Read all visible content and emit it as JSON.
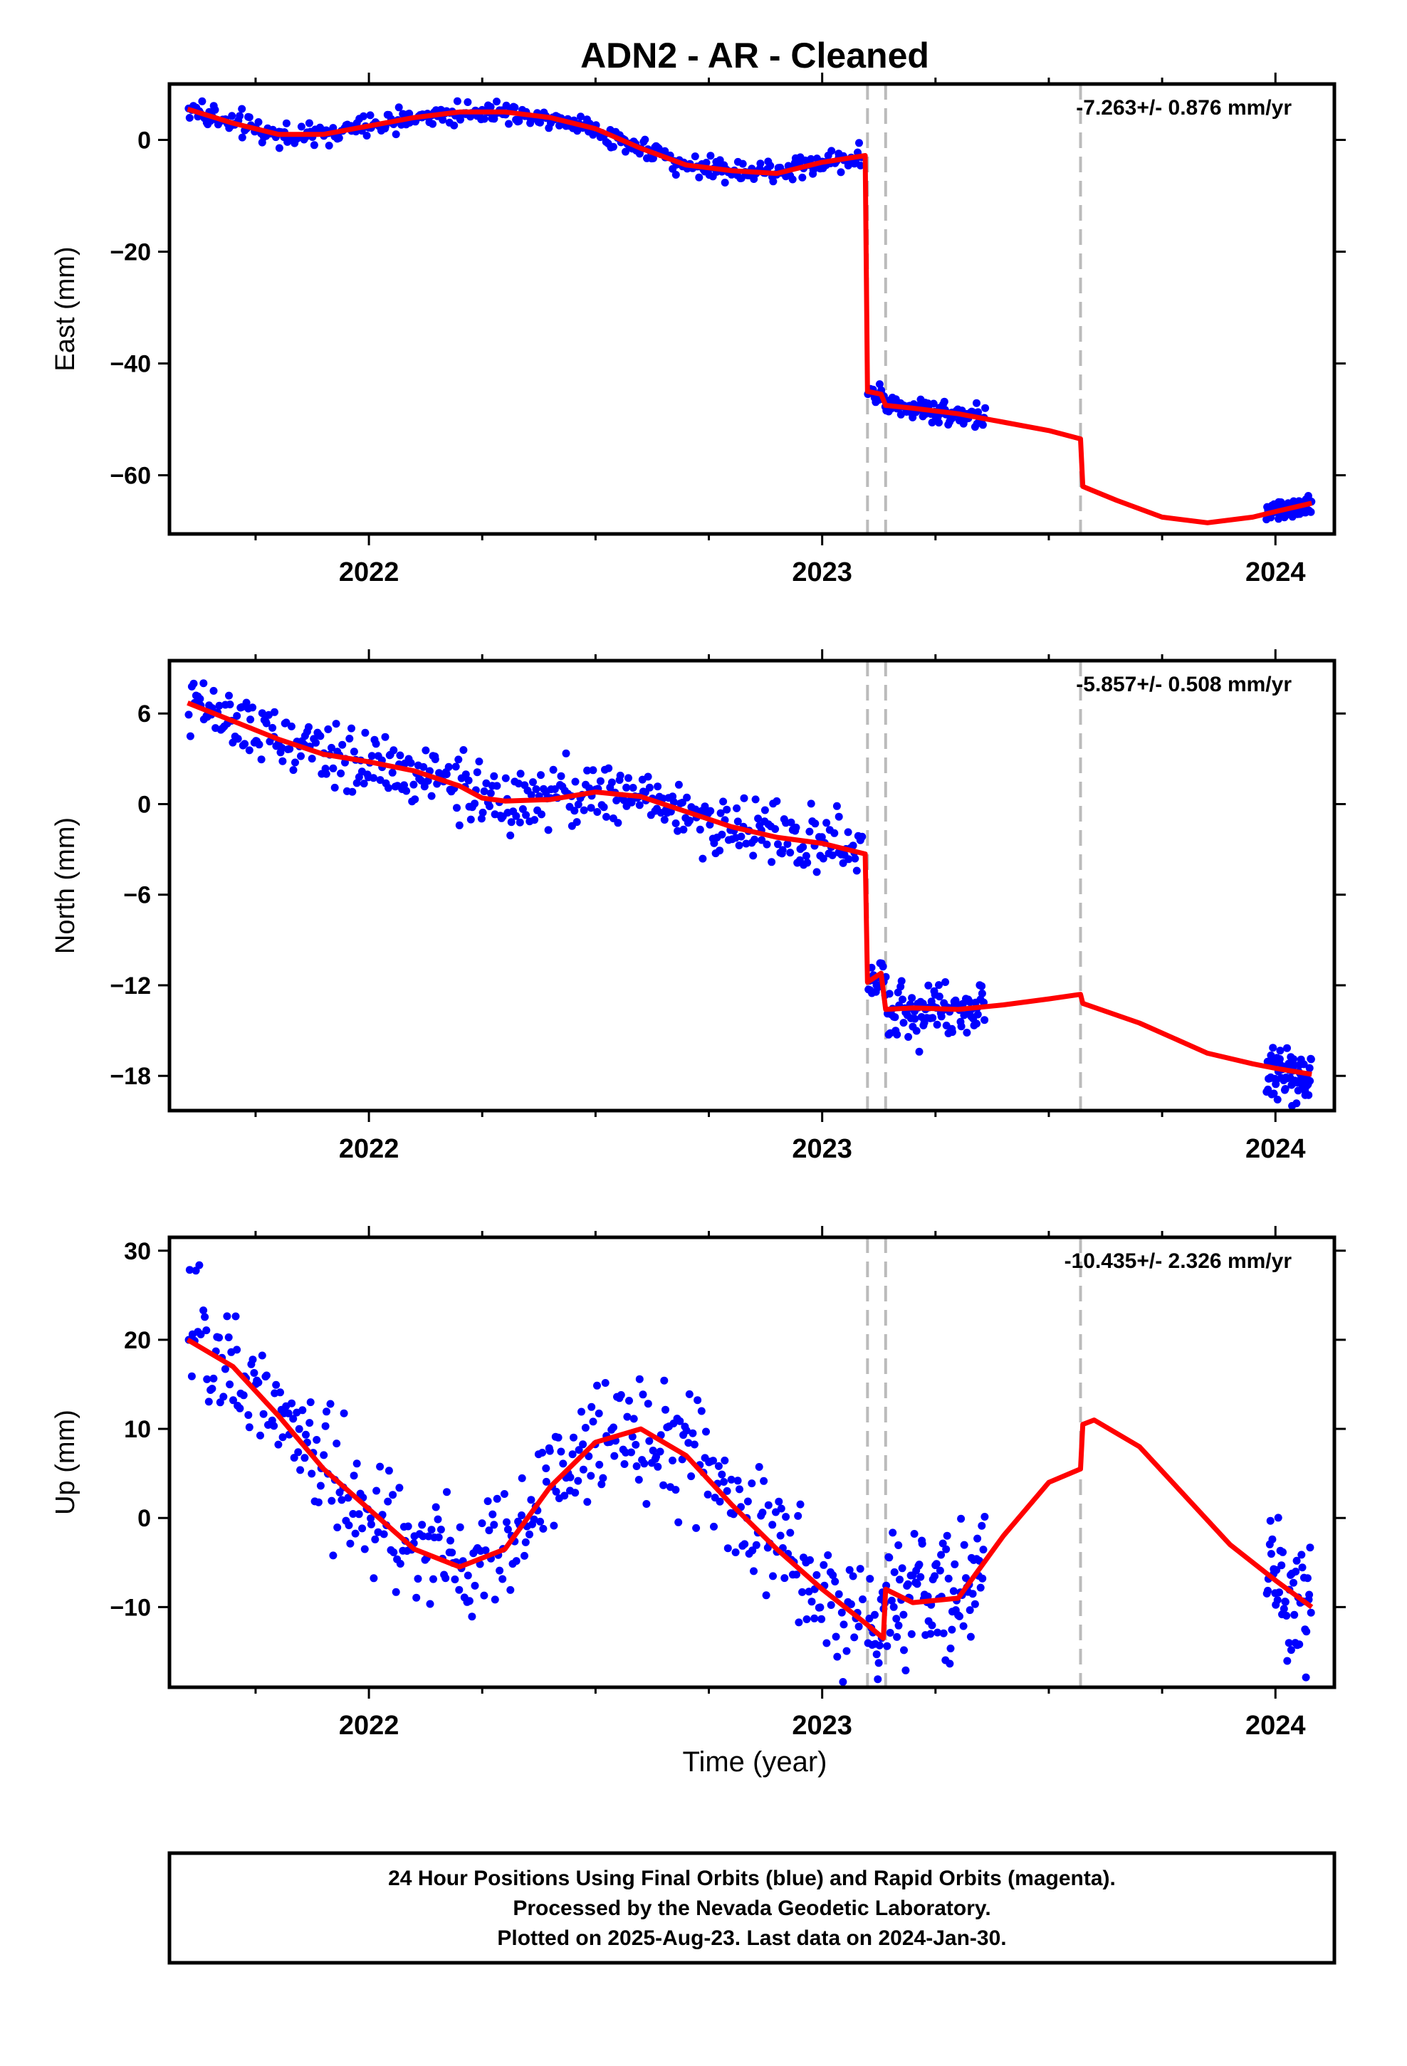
{
  "title": "ADN2  - AR - Cleaned",
  "xlabel": "Time (year)",
  "colors": {
    "points": "#0000ff",
    "model": "#ff0000",
    "break_lines": "#bbbbbb",
    "frame": "#000000"
  },
  "footer": {
    "line1": "24 Hour Positions Using Final Orbits (blue) and Rapid Orbits (magenta).",
    "line2": "Processed by the Nevada Geodetic Laboratory.",
    "line3": "Plotted on 2025-Aug-23. Last data on 2024-Jan-30."
  },
  "chart_data": [
    {
      "type": "scatter",
      "component": "east",
      "ylabel": "East (mm)",
      "rate_text": "-7.263+/- 0.876 mm/yr",
      "xlim": [
        2021.56,
        2024.13
      ],
      "ylim": [
        -70.5,
        10
      ],
      "yticks": [
        0,
        -20,
        -40,
        -60
      ],
      "ytick_labels": [
        "0",
        "−20",
        "−40",
        "−60"
      ],
      "xticks": [
        2022,
        2023,
        2024
      ],
      "xtick_labels": [
        "2022",
        "2023",
        "2024"
      ],
      "break_epochs": [
        2023.1,
        2023.14,
        2023.57
      ],
      "noise_sd": 1.0,
      "model": {
        "x": [
          2021.6,
          2021.7,
          2021.8,
          2021.9,
          2022.0,
          2022.1,
          2022.2,
          2022.3,
          2022.4,
          2022.5,
          2022.6,
          2022.7,
          2022.8,
          2022.9,
          2023.0,
          2023.095,
          2023.1,
          2023.13,
          2023.14,
          2023.2,
          2023.3,
          2023.4,
          2023.5,
          2023.57,
          2023.575,
          2023.65,
          2023.75,
          2023.85,
          2023.95,
          2024.0,
          2024.08
        ],
        "y": [
          5.5,
          3.0,
          1.0,
          1.0,
          2.5,
          4.0,
          5.0,
          5.0,
          4.0,
          2.0,
          -1.5,
          -4.5,
          -5.5,
          -6.0,
          -4.0,
          -2.8,
          -45.0,
          -45.5,
          -47.5,
          -48.0,
          -49.0,
          -50.5,
          -52.0,
          -53.5,
          -62.0,
          -64.5,
          -67.5,
          -68.5,
          -67.5,
          -66.5,
          -65.0
        ]
      },
      "data_segments": [
        [
          2021.6,
          2023.09,
          420
        ],
        [
          2023.1,
          2023.36,
          110
        ],
        [
          2023.98,
          2024.08,
          70
        ]
      ]
    },
    {
      "type": "scatter",
      "component": "north",
      "ylabel": "North (mm)",
      "rate_text": "-5.857+/- 0.508 mm/yr",
      "xlim": [
        2021.56,
        2024.13
      ],
      "ylim": [
        -20.3,
        9.5
      ],
      "yticks": [
        6,
        0,
        -6,
        -12,
        -18
      ],
      "ytick_labels": [
        "6",
        "0",
        "−6",
        "−12",
        "−18"
      ],
      "xticks": [
        2022,
        2023,
        2024
      ],
      "xtick_labels": [
        "2022",
        "2023",
        "2024"
      ],
      "break_epochs": [
        2023.1,
        2023.14,
        2023.57
      ],
      "noise_sd": 1.0,
      "model": {
        "x": [
          2021.6,
          2021.7,
          2021.8,
          2021.9,
          2022.0,
          2022.1,
          2022.2,
          2022.25,
          2022.3,
          2022.4,
          2022.5,
          2022.6,
          2022.7,
          2022.8,
          2022.9,
          2023.0,
          2023.095,
          2023.1,
          2023.13,
          2023.14,
          2023.2,
          2023.3,
          2023.4,
          2023.5,
          2023.57,
          2023.575,
          2023.7,
          2023.85,
          2023.95,
          2024.0,
          2024.08
        ],
        "y": [
          6.7,
          5.5,
          4.3,
          3.3,
          2.8,
          2.2,
          1.2,
          0.4,
          0.2,
          0.3,
          0.8,
          0.5,
          -0.5,
          -1.5,
          -2.2,
          -2.6,
          -3.3,
          -11.8,
          -11.2,
          -13.6,
          -13.5,
          -13.6,
          -13.3,
          -12.9,
          -12.6,
          -13.2,
          -14.5,
          -16.5,
          -17.2,
          -17.5,
          -17.9
        ]
      },
      "data_segments": [
        [
          2021.6,
          2023.09,
          420
        ],
        [
          2023.1,
          2023.36,
          110
        ],
        [
          2023.98,
          2024.08,
          70
        ]
      ]
    },
    {
      "type": "scatter",
      "component": "up",
      "ylabel": "Up (mm)",
      "rate_text": "-10.435+/- 2.326 mm/yr",
      "xlim": [
        2021.56,
        2024.13
      ],
      "ylim": [
        -19,
        31.5
      ],
      "yticks": [
        30,
        20,
        10,
        0,
        -10
      ],
      "ytick_labels": [
        "30",
        "20",
        "10",
        "0",
        "−10"
      ],
      "xticks": [
        2022,
        2023,
        2024
      ],
      "xtick_labels": [
        "2022",
        "2023",
        "2024"
      ],
      "break_epochs": [
        2023.1,
        2023.14,
        2023.57
      ],
      "noise_sd": 3.5,
      "model": {
        "x": [
          2021.6,
          2021.7,
          2021.8,
          2021.9,
          2022.0,
          2022.1,
          2022.2,
          2022.3,
          2022.4,
          2022.5,
          2022.6,
          2022.7,
          2022.8,
          2022.9,
          2023.0,
          2023.1,
          2023.135,
          2023.14,
          2023.2,
          2023.3,
          2023.4,
          2023.5,
          2023.57,
          2023.575,
          2023.6,
          2023.7,
          2023.8,
          2023.9,
          2024.0,
          2024.08
        ],
        "y": [
          20.0,
          17.0,
          11.5,
          5.5,
          1.0,
          -3.5,
          -5.5,
          -3.5,
          3.5,
          8.5,
          10.0,
          7.0,
          1.5,
          -3.5,
          -8.0,
          -12.0,
          -13.5,
          -8.0,
          -9.5,
          -9.0,
          -2.0,
          4.0,
          5.5,
          10.5,
          11.0,
          8.0,
          2.5,
          -3.0,
          -7.0,
          -10.0
        ]
      },
      "data_segments": [
        [
          2021.6,
          2023.09,
          420
        ],
        [
          2023.1,
          2023.36,
          110
        ],
        [
          2023.98,
          2024.08,
          50
        ]
      ]
    }
  ]
}
